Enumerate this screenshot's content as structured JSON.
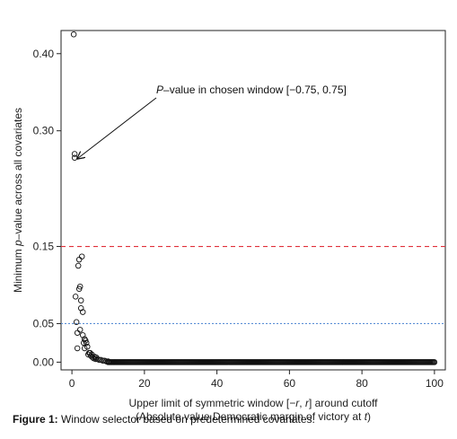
{
  "chart_data": {
    "type": "scatter",
    "xlabel_line1_pre": "Upper limit of symmetric window [",
    "xlabel_line1_r1": "−r",
    "xlabel_line1_mid": ", ",
    "xlabel_line1_r2": "r",
    "xlabel_line1_post": "] around cutoff",
    "xlabel_line2_pre": "(Absolute value Democratic margin of victory at ",
    "xlabel_line2_t": "t",
    "xlabel_line2_post": ")",
    "ylabel_pre": "Minimum ",
    "ylabel_p": "p",
    "ylabel_post": "–value across all covariates",
    "xlim": [
      -3,
      103
    ],
    "ylim": [
      -0.01,
      0.43
    ],
    "xticks": [
      0,
      20,
      40,
      60,
      80,
      100
    ],
    "xtick_labels": [
      "0",
      "20",
      "40",
      "60",
      "80",
      "100"
    ],
    "yticks": [
      0.0,
      0.05,
      0.15,
      0.3,
      0.4
    ],
    "ytick_labels": [
      "0.00",
      "0.05",
      "0.15",
      "0.30",
      "0.40"
    ],
    "reference_lines": [
      {
        "y": 0.15,
        "color": "#e0303a",
        "style": "dashed"
      },
      {
        "y": 0.05,
        "color": "#5b8fd6",
        "style": "dotted"
      }
    ],
    "annotation": {
      "text_italic": "P",
      "text_rest": "–value in chosen window [−0.75, 0.75]",
      "target": [
        0.75,
        0.265
      ]
    },
    "points": {
      "x": [
        0.5,
        0.75,
        0.75,
        1.0,
        1.25,
        1.5,
        1.5,
        1.75,
        2.0,
        2.0,
        2.25,
        2.25,
        2.5,
        2.5,
        2.75,
        3.0,
        3.0,
        3.25,
        3.5,
        3.5,
        3.75,
        4.0,
        4.25,
        4.5,
        4.75,
        5.0,
        5.25,
        5.5,
        5.75,
        6.0,
        6.25,
        6.5,
        6.75,
        7.0,
        7.5,
        8.0,
        8.5,
        9.0,
        9.5,
        10.0
      ],
      "y": [
        0.425,
        0.27,
        0.265,
        0.085,
        0.052,
        0.018,
        0.038,
        0.125,
        0.095,
        0.133,
        0.098,
        0.042,
        0.08,
        0.07,
        0.137,
        0.065,
        0.035,
        0.025,
        0.03,
        0.018,
        0.028,
        0.025,
        0.02,
        0.01,
        0.012,
        0.012,
        0.008,
        0.01,
        0.006,
        0.005,
        0.007,
        0.004,
        0.006,
        0.004,
        0.003,
        0.003,
        0.002,
        0.002,
        0.001,
        0.001
      ],
      "baseline_from": 10.0,
      "baseline_to": 100.0,
      "baseline_step": 0.25,
      "baseline_y": 0.0
    }
  },
  "caption": {
    "label": "Figure 1:",
    "text": "Window selector based on predetermined covariates."
  }
}
